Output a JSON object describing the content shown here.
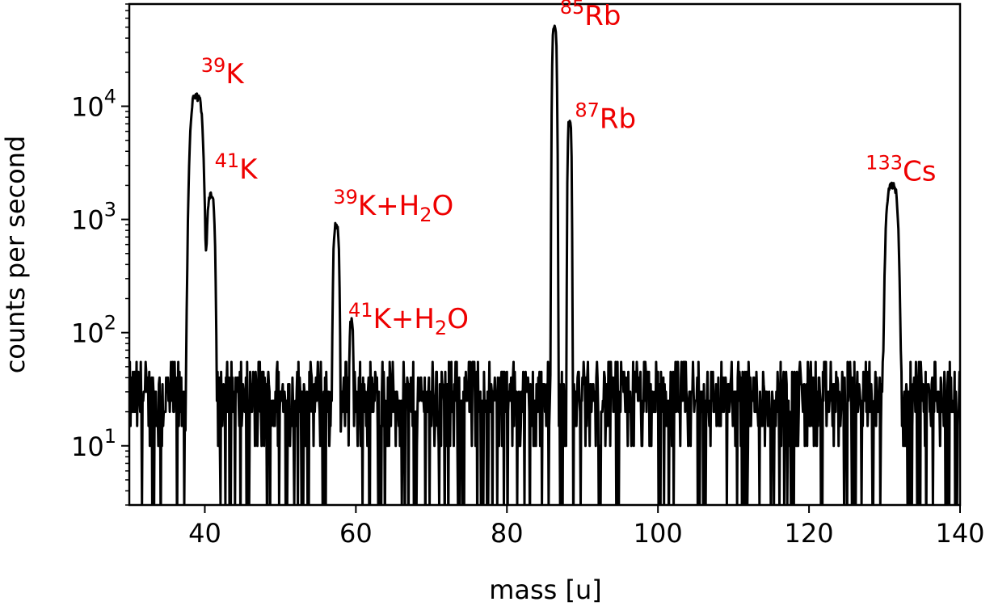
{
  "chart_data": {
    "type": "line",
    "title": "",
    "xlabel": "mass [u]",
    "ylabel": "counts per second",
    "xlim": [
      30,
      140
    ],
    "ylim": [
      3,
      80000
    ],
    "y_scale": "log",
    "grid": false,
    "x_ticks": [
      40,
      60,
      80,
      100,
      120,
      140
    ],
    "x_tick_labels": [
      "40",
      "60",
      "80",
      "100",
      "120",
      "140"
    ],
    "y_ticks": [
      10,
      100,
      1000,
      10000
    ],
    "y_tick_labels": [
      {
        "base": "10",
        "exp": "1"
      },
      {
        "base": "10",
        "exp": "2"
      },
      {
        "base": "10",
        "exp": "3"
      },
      {
        "base": "10",
        "exp": "4"
      }
    ],
    "line_color": "#000000",
    "annotation_color": "#ee0000",
    "background_level": [
      20,
      40
    ],
    "peaks": [
      {
        "mass": 38.9,
        "height": 12000,
        "width": 0.9
      },
      {
        "mass": 40.8,
        "height": 1600,
        "width": 0.55
      },
      {
        "mass": 57.4,
        "height": 880,
        "width": 0.42
      },
      {
        "mass": 59.4,
        "height": 120,
        "width": 0.28
      },
      {
        "mass": 86.3,
        "height": 48000,
        "width": 0.33
      },
      {
        "mass": 88.3,
        "height": 7200,
        "width": 0.28
      },
      {
        "mass": 131.0,
        "height": 2000,
        "width": 0.85
      }
    ],
    "annotations": [
      {
        "sup": "39",
        "text": "K",
        "sub": "",
        "tail": "",
        "x": 39.5,
        "y": 16000
      },
      {
        "sup": "41",
        "text": "K",
        "sub": "",
        "tail": "",
        "x": 41.3,
        "y": 2300
      },
      {
        "sup": "39",
        "text": "K+H",
        "sub": "2",
        "tail": "O",
        "x": 57.0,
        "y": 1100
      },
      {
        "sup": "41",
        "text": "K+H",
        "sub": "2",
        "tail": "O",
        "x": 59.0,
        "y": 110
      },
      {
        "sup": "85",
        "text": "Rb",
        "sub": "",
        "tail": "",
        "x": 87.0,
        "y": 52000
      },
      {
        "sup": "87",
        "text": "Rb",
        "sub": "",
        "tail": "",
        "x": 89.0,
        "y": 6400
      },
      {
        "sup": "133",
        "text": "Cs",
        "sub": "",
        "tail": "",
        "x": 127.5,
        "y": 2200
      }
    ]
  }
}
